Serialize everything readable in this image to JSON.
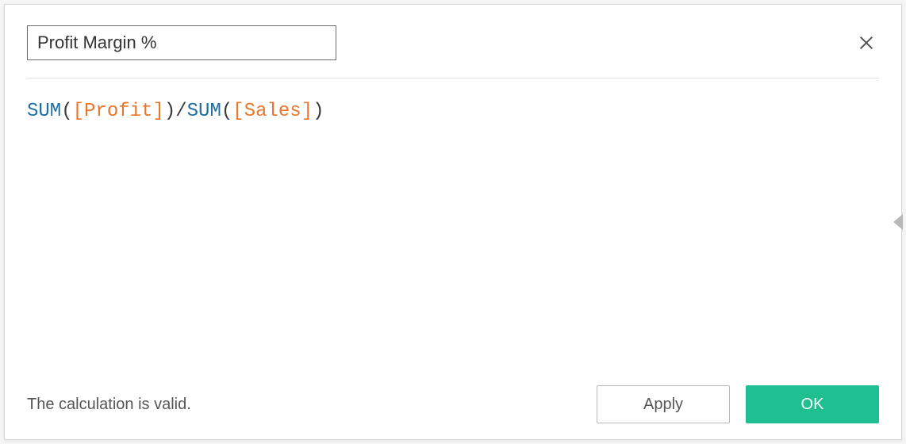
{
  "dialog": {
    "name_value": "Profit Margin %",
    "status_text": "The calculation is valid.",
    "apply_label": "Apply",
    "ok_label": "OK"
  },
  "formula": {
    "tokens": [
      {
        "type": "fn",
        "text": "SUM"
      },
      {
        "type": "paren",
        "text": "("
      },
      {
        "type": "field",
        "text": "[Profit]"
      },
      {
        "type": "paren",
        "text": ")"
      },
      {
        "type": "op",
        "text": "/"
      },
      {
        "type": "fn",
        "text": "SUM"
      },
      {
        "type": "paren",
        "text": "("
      },
      {
        "type": "field",
        "text": "[Sales]"
      },
      {
        "type": "paren",
        "text": ")"
      }
    ]
  },
  "colors": {
    "fn": "#1f6fa0",
    "field": "#e8762c",
    "text": "#3a3a3a",
    "ok_bg": "#1fbf92",
    "border": "#d7d7d7"
  }
}
